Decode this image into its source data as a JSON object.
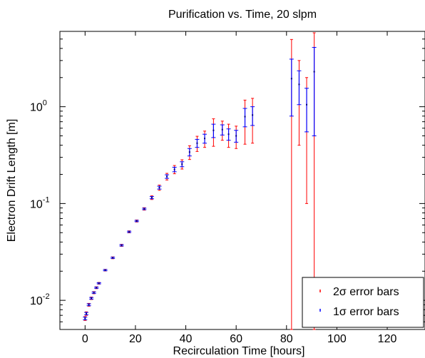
{
  "chart_data": {
    "type": "scatter",
    "title": "Purification vs. Time, 20 slpm",
    "xlabel": "Recirculation Time [hours]",
    "ylabel": "Electron Drift Length [m]",
    "xlim": [
      -10,
      135
    ],
    "ylim": [
      0.005,
      6.0
    ],
    "yscale": "log",
    "xticks": [
      0,
      20,
      40,
      60,
      80,
      100,
      120
    ],
    "xtick_labels": [
      "0",
      "20",
      "40",
      "60",
      "80",
      "100",
      "120"
    ],
    "yticks": [
      0.01,
      0.1,
      1
    ],
    "grid": false,
    "legend_position": "bottom-right",
    "legend": [
      {
        "symbol": "2σ",
        "text": " error bars",
        "color": "#ff0000"
      },
      {
        "symbol": "1σ",
        "text": " error bars",
        "color": "#0000ff"
      }
    ],
    "colors": {
      "two_sigma": "#ff0000",
      "one_sigma": "#0000ff"
    },
    "points": [
      {
        "x": 0.0,
        "y": 0.0065,
        "e1": 0.0002,
        "e2": 0.0003
      },
      {
        "x": 0.5,
        "y": 0.0073,
        "e1": 0.0002,
        "e2": 0.0003
      },
      {
        "x": 1.5,
        "y": 0.009,
        "e1": 0.0002,
        "e2": 0.0003
      },
      {
        "x": 2.5,
        "y": 0.0105,
        "e1": 0.0002,
        "e2": 0.0003
      },
      {
        "x": 3.5,
        "y": 0.012,
        "e1": 0.0002,
        "e2": 0.0003
      },
      {
        "x": 4.5,
        "y": 0.0135,
        "e1": 0.0002,
        "e2": 0.0003
      },
      {
        "x": 5.5,
        "y": 0.015,
        "e1": 0.0002,
        "e2": 0.0003
      },
      {
        "x": 8.0,
        "y": 0.0205,
        "e1": 0.0003,
        "e2": 0.0004
      },
      {
        "x": 11.0,
        "y": 0.0275,
        "e1": 0.0004,
        "e2": 0.0006
      },
      {
        "x": 14.5,
        "y": 0.037,
        "e1": 0.0006,
        "e2": 0.0009
      },
      {
        "x": 17.5,
        "y": 0.051,
        "e1": 0.0008,
        "e2": 0.0012
      },
      {
        "x": 20.5,
        "y": 0.066,
        "e1": 0.001,
        "e2": 0.0016
      },
      {
        "x": 23.5,
        "y": 0.088,
        "e1": 0.0015,
        "e2": 0.0025
      },
      {
        "x": 26.5,
        "y": 0.115,
        "e1": 0.003,
        "e2": 0.005
      },
      {
        "x": 29.5,
        "y": 0.146,
        "e1": 0.005,
        "e2": 0.009
      },
      {
        "x": 32.5,
        "y": 0.19,
        "e1": 0.008,
        "e2": 0.015
      },
      {
        "x": 35.5,
        "y": 0.225,
        "e1": 0.012,
        "e2": 0.022
      },
      {
        "x": 38.5,
        "y": 0.255,
        "e1": 0.015,
        "e2": 0.028
      },
      {
        "x": 41.5,
        "y": 0.34,
        "e1": 0.03,
        "e2": 0.055
      },
      {
        "x": 44.5,
        "y": 0.42,
        "e1": 0.04,
        "e2": 0.075
      },
      {
        "x": 47.5,
        "y": 0.47,
        "e1": 0.05,
        "e2": 0.09
      },
      {
        "x": 51.0,
        "y": 0.57,
        "e1": 0.09,
        "e2": 0.18
      },
      {
        "x": 54.5,
        "y": 0.58,
        "e1": 0.07,
        "e2": 0.13
      },
      {
        "x": 57.0,
        "y": 0.52,
        "e1": 0.07,
        "e2": 0.14
      },
      {
        "x": 60.0,
        "y": 0.5,
        "e1": 0.07,
        "e2": 0.13
      },
      {
        "x": 63.5,
        "y": 0.79,
        "e1": 0.17,
        "e2": 0.38
      },
      {
        "x": 66.5,
        "y": 0.82,
        "e1": 0.18,
        "e2": 0.4
      },
      {
        "x": 82.0,
        "y": 1.95,
        "e1": 1.15,
        "e2": 3.0
      },
      {
        "x": 85.0,
        "y": 1.7,
        "e1": 0.65,
        "e2": 1.3
      },
      {
        "x": 88.0,
        "y": 1.05,
        "e1": 0.5,
        "e2": 0.95
      },
      {
        "x": 91.0,
        "y": 2.3,
        "e1": 1.8,
        "e2": 3.5
      }
    ]
  }
}
